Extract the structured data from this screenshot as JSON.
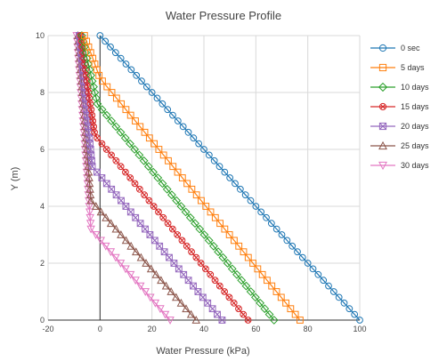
{
  "chart_data": {
    "type": "line",
    "title": "Water Pressure Profile",
    "xlabel": "Water Pressure (kPa)",
    "ylabel": "Y (m)",
    "xlim": [
      -20,
      100
    ],
    "ylim": [
      0,
      10
    ],
    "xticks": [
      -20,
      0,
      20,
      40,
      60,
      80,
      100
    ],
    "yticks": [
      0,
      2,
      4,
      6,
      8,
      10
    ],
    "grid": true,
    "zero_line": true,
    "legend_position": "right",
    "series": [
      {
        "name": "0 sec",
        "color": "#1f77b4",
        "marker": "circle",
        "start": [
          100,
          0
        ],
        "end": [
          0,
          10
        ],
        "bend": null
      },
      {
        "name": "5 days",
        "color": "#ff7f0e",
        "marker": "square",
        "start": [
          77,
          0
        ],
        "end": [
          -6,
          10
        ],
        "bend": [
          0,
          8.5
        ]
      },
      {
        "name": "10 days",
        "color": "#2ca02c",
        "marker": "diamond",
        "start": [
          67,
          0
        ],
        "end": [
          -7,
          10
        ],
        "bend": [
          -1,
          7.6
        ]
      },
      {
        "name": "15 days",
        "color": "#d62728",
        "marker": "circle-x",
        "start": [
          57,
          0
        ],
        "end": [
          -7.5,
          10
        ],
        "bend": [
          -2,
          6.5
        ]
      },
      {
        "name": "20 days",
        "color": "#9467bd",
        "marker": "square-x",
        "start": [
          47,
          0
        ],
        "end": [
          -8,
          10
        ],
        "bend": [
          -3,
          5.4
        ]
      },
      {
        "name": "25 days",
        "color": "#8c564b",
        "marker": "triangle",
        "start": [
          37,
          0
        ],
        "end": [
          -8.5,
          10
        ],
        "bend": [
          -3.5,
          4.2
        ]
      },
      {
        "name": "30 days",
        "color": "#e377c2",
        "marker": "triangle-down",
        "start": [
          27,
          0
        ],
        "end": [
          -9,
          10
        ],
        "bend": [
          -3.5,
          3.2
        ]
      }
    ]
  }
}
